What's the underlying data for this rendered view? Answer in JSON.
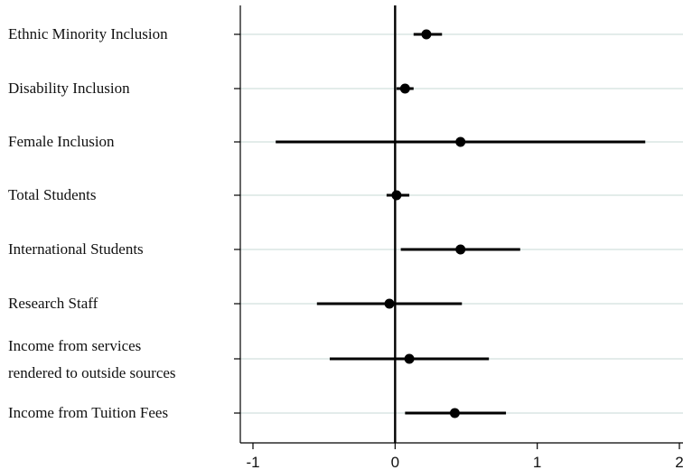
{
  "chart_data": {
    "type": "coefficient_plot",
    "title": "",
    "xlabel": "",
    "ylabel": "",
    "xlim": [
      -1,
      2
    ],
    "xticks": [
      -1,
      0,
      1,
      2
    ],
    "xtick_labels": [
      "-1",
      "0",
      "1",
      "2"
    ],
    "reference_line_x": 0,
    "grid": "horizontal",
    "categories": [
      {
        "label": [
          "Ethnic Minority Inclusion"
        ],
        "estimate": 0.22,
        "ci": [
          0.13,
          0.33
        ]
      },
      {
        "label": [
          "Disability Inclusion"
        ],
        "estimate": 0.07,
        "ci": [
          0.01,
          0.13
        ]
      },
      {
        "label": [
          "Female Inclusion"
        ],
        "estimate": 0.46,
        "ci": [
          -0.84,
          1.76
        ]
      },
      {
        "label": [
          "Total Students"
        ],
        "estimate": 0.01,
        "ci": [
          -0.06,
          0.1
        ]
      },
      {
        "label": [
          "International Students"
        ],
        "estimate": 0.46,
        "ci": [
          0.04,
          0.88
        ]
      },
      {
        "label": [
          "Research Staff"
        ],
        "estimate": -0.04,
        "ci": [
          -0.55,
          0.47
        ]
      },
      {
        "label": [
          "Income from services",
          "rendered to outside sources"
        ],
        "estimate": 0.1,
        "ci": [
          -0.46,
          0.66
        ]
      },
      {
        "label": [
          "Income from Tuition Fees"
        ],
        "estimate": 0.42,
        "ci": [
          0.07,
          0.78
        ]
      }
    ],
    "colors": {
      "marker": "#000000",
      "grid": "#e3ecea",
      "axis": "#000000"
    }
  }
}
